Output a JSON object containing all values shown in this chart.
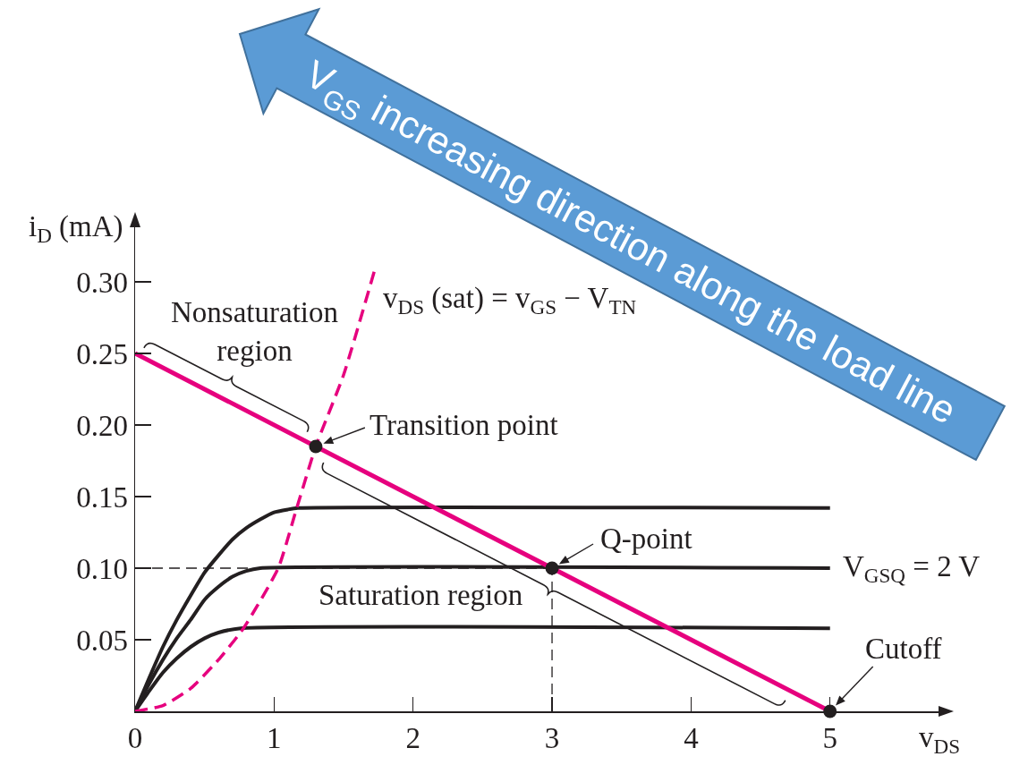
{
  "chart_data": {
    "type": "line",
    "xlabel": "v$_{DS}$",
    "ylabel": "i$_{D}$ (mA)",
    "xlim": [
      0,
      5.8
    ],
    "ylim": [
      0,
      0.34
    ],
    "xticks": [
      0,
      1,
      2,
      3,
      4,
      5
    ],
    "yticks": [
      0.05,
      {
        "value": 0.1,
        "label": "0.10"
      },
      0.15,
      {
        "value": 0.2,
        "label": "0.20"
      },
      0.25,
      {
        "value": 0.3,
        "label": "0.30"
      }
    ],
    "line_style": "solid",
    "series": [
      {
        "color": "#231f20",
        "x": [
          0,
          0.1,
          0.2,
          0.3,
          0.4,
          0.5,
          0.6,
          0.76,
          5
        ],
        "values": [
          0,
          0.014,
          0.027,
          0.037,
          0.045,
          0.051,
          0.055,
          0.058,
          0.058
        ]
      },
      {
        "name": "V$_{GSQ}$ = 2 V",
        "color": "#231f20",
        "x": [
          0,
          0.1,
          0.2,
          0.3,
          0.4,
          0.5,
          0.6,
          0.7,
          0.8,
          0.9,
          5
        ],
        "values": [
          0,
          0.019,
          0.036,
          0.051,
          0.064,
          0.078,
          0.087,
          0.094,
          0.098,
          0.1,
          0.1
        ]
      },
      {
        "color": "#231f20",
        "x": [
          0,
          0.1,
          0.2,
          0.3,
          0.4,
          0.5,
          0.6,
          0.7,
          0.8,
          0.9,
          1.0,
          1.1,
          1.17,
          5
        ],
        "values": [
          0,
          0.023,
          0.045,
          0.064,
          0.081,
          0.097,
          0.109,
          0.12,
          0.128,
          0.134,
          0.139,
          0.141,
          0.142,
          0.142
        ]
      },
      {
        "name": "v$_{DS}$ (sat) = v$_{GS}$ − V$_{TN}$",
        "color": "#e6007e",
        "line_style": "dashed",
        "x": [
          0,
          0.2,
          0.4,
          0.6,
          0.78,
          1.03,
          1.16,
          1.3,
          1.5,
          1.72
        ],
        "values": [
          0,
          0.004,
          0.016,
          0.036,
          0.058,
          0.1,
          0.141,
          0.185,
          0.235,
          0.307
        ]
      },
      {
        "color": "#e6007e",
        "x": [
          0,
          5
        ],
        "values": [
          0.25,
          0
        ]
      },
      {
        "type": "scatter",
        "marker": "circle",
        "color": "#231f20",
        "x": [
          1.3,
          3,
          5
        ],
        "values": [
          0.185,
          0.1,
          0
        ]
      }
    ],
    "ref_lines": [
      {
        "axis": "y",
        "value": 0.1,
        "color": "#231f20",
        "line_style": "dashed"
      },
      {
        "axis": "x",
        "value": 3,
        "color": "#231f20",
        "line_style": "dashed"
      }
    ],
    "annotations": [
      "V$_{GS}$ increasing direction along the load line",
      "Nonsaturation\nregion",
      {
        "text": "Transition point",
        "x": 1.3,
        "y": 0.185
      },
      {
        "text": "Q-point",
        "x": 3,
        "y": 0.1
      },
      {
        "text": "Cutoff",
        "x": 5,
        "y": 0
      },
      "Saturation region"
    ]
  }
}
